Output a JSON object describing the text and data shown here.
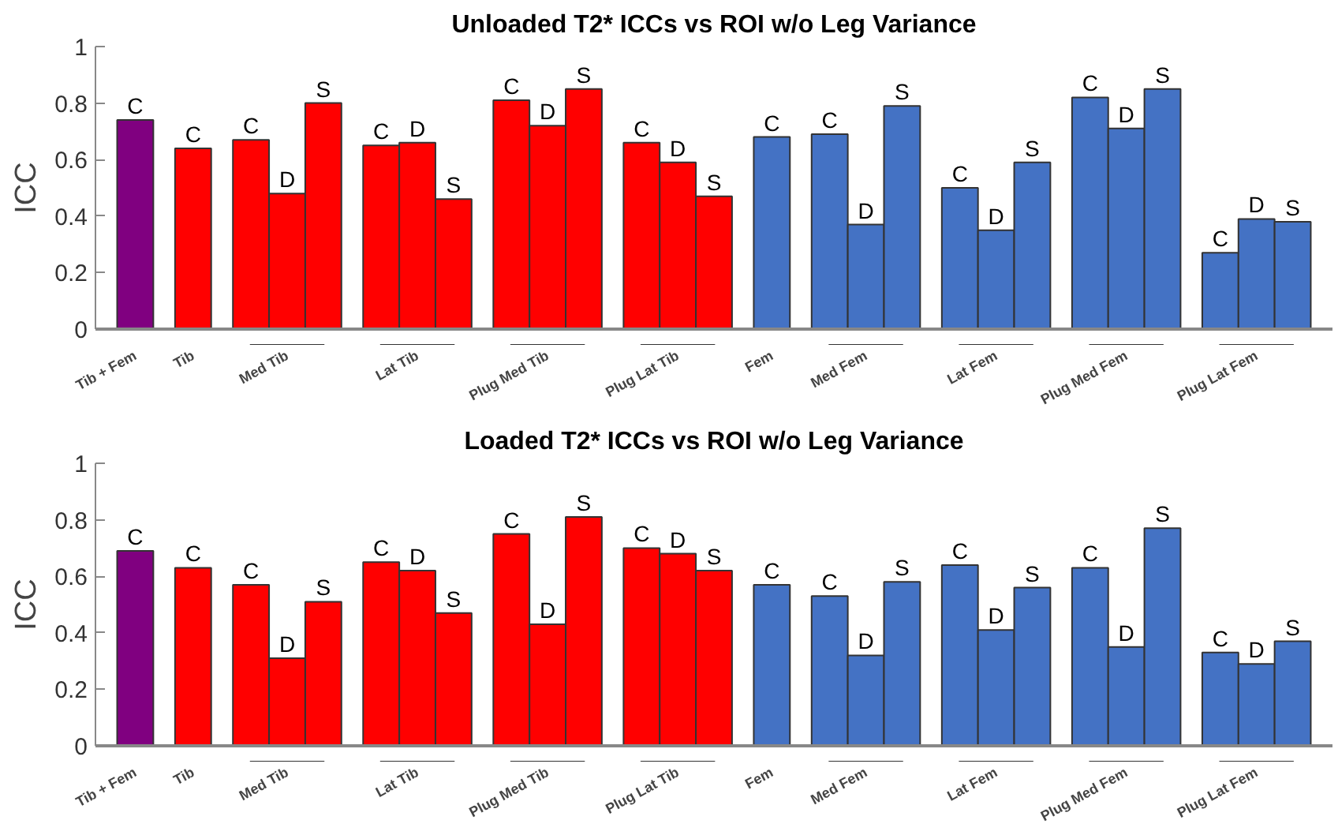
{
  "chart_data": [
    {
      "type": "bar",
      "title": "Unloaded T2* ICCs vs ROI w/o Leg Variance",
      "ylabel": "ICC",
      "categories": [
        "Tib + Fem",
        "Tib",
        "Med Tib",
        "Lat Tib",
        "Plug Med Tib",
        "Plug Lat Tib",
        "Fem",
        "Med Fem",
        "Lat Fem",
        "Plug Med Fem",
        "Plug Lat Fem"
      ],
      "series": [
        {
          "name": "C",
          "colors": [
            "#800080",
            "#ff0000",
            "#ff0000",
            "#ff0000",
            "#ff0000",
            "#ff0000",
            "#4472c4",
            "#4472c4",
            "#4472c4",
            "#4472c4",
            "#4472c4"
          ],
          "values": [
            0.74,
            0.64,
            0.67,
            0.65,
            0.81,
            0.66,
            0.68,
            0.69,
            0.5,
            0.82,
            0.27
          ]
        },
        {
          "name": "D",
          "colors": [
            "#800080",
            "#ff0000",
            "#ff0000",
            "#ff0000",
            "#ff0000",
            "#ff0000",
            "#4472c4",
            "#4472c4",
            "#4472c4",
            "#4472c4",
            "#4472c4"
          ],
          "values": [
            null,
            null,
            0.48,
            0.66,
            0.72,
            0.59,
            null,
            0.37,
            0.35,
            0.71,
            0.39
          ]
        },
        {
          "name": "S",
          "colors": [
            "#800080",
            "#ff0000",
            "#ff0000",
            "#ff0000",
            "#ff0000",
            "#ff0000",
            "#4472c4",
            "#4472c4",
            "#4472c4",
            "#4472c4",
            "#4472c4"
          ],
          "values": [
            null,
            null,
            0.8,
            0.46,
            0.85,
            0.47,
            null,
            0.79,
            0.59,
            0.85,
            0.38
          ]
        }
      ],
      "ylim": [
        0,
        1
      ],
      "yticks": [
        0,
        0.2,
        0.4,
        0.6,
        0.8,
        1
      ],
      "grid": false
    },
    {
      "type": "bar",
      "title": "Loaded T2* ICCs vs ROI w/o Leg Variance",
      "ylabel": "ICC",
      "categories": [
        "Tib + Fem",
        "Tib",
        "Med Tib",
        "Lat Tib",
        "Plug Med Tib",
        "Plug Lat Tib",
        "Fem",
        "Med Fem",
        "Lat Fem",
        "Plug Med Fem",
        "Plug Lat Fem"
      ],
      "series": [
        {
          "name": "C",
          "colors": [
            "#800080",
            "#ff0000",
            "#ff0000",
            "#ff0000",
            "#ff0000",
            "#ff0000",
            "#4472c4",
            "#4472c4",
            "#4472c4",
            "#4472c4",
            "#4472c4"
          ],
          "values": [
            0.69,
            0.63,
            0.57,
            0.65,
            0.75,
            0.7,
            0.57,
            0.53,
            0.64,
            0.63,
            0.33
          ]
        },
        {
          "name": "D",
          "colors": [
            "#800080",
            "#ff0000",
            "#ff0000",
            "#ff0000",
            "#ff0000",
            "#ff0000",
            "#4472c4",
            "#4472c4",
            "#4472c4",
            "#4472c4",
            "#4472c4"
          ],
          "values": [
            null,
            null,
            0.31,
            0.62,
            0.43,
            0.68,
            null,
            0.32,
            0.41,
            0.35,
            0.29
          ]
        },
        {
          "name": "S",
          "colors": [
            "#800080",
            "#ff0000",
            "#ff0000",
            "#ff0000",
            "#ff0000",
            "#ff0000",
            "#4472c4",
            "#4472c4",
            "#4472c4",
            "#4472c4",
            "#4472c4"
          ],
          "values": [
            null,
            null,
            0.51,
            0.47,
            0.81,
            0.62,
            null,
            0.58,
            0.56,
            0.77,
            0.37
          ]
        }
      ],
      "ylim": [
        0,
        1
      ],
      "yticks": [
        0,
        0.2,
        0.4,
        0.6,
        0.8,
        1
      ],
      "grid": false
    }
  ]
}
